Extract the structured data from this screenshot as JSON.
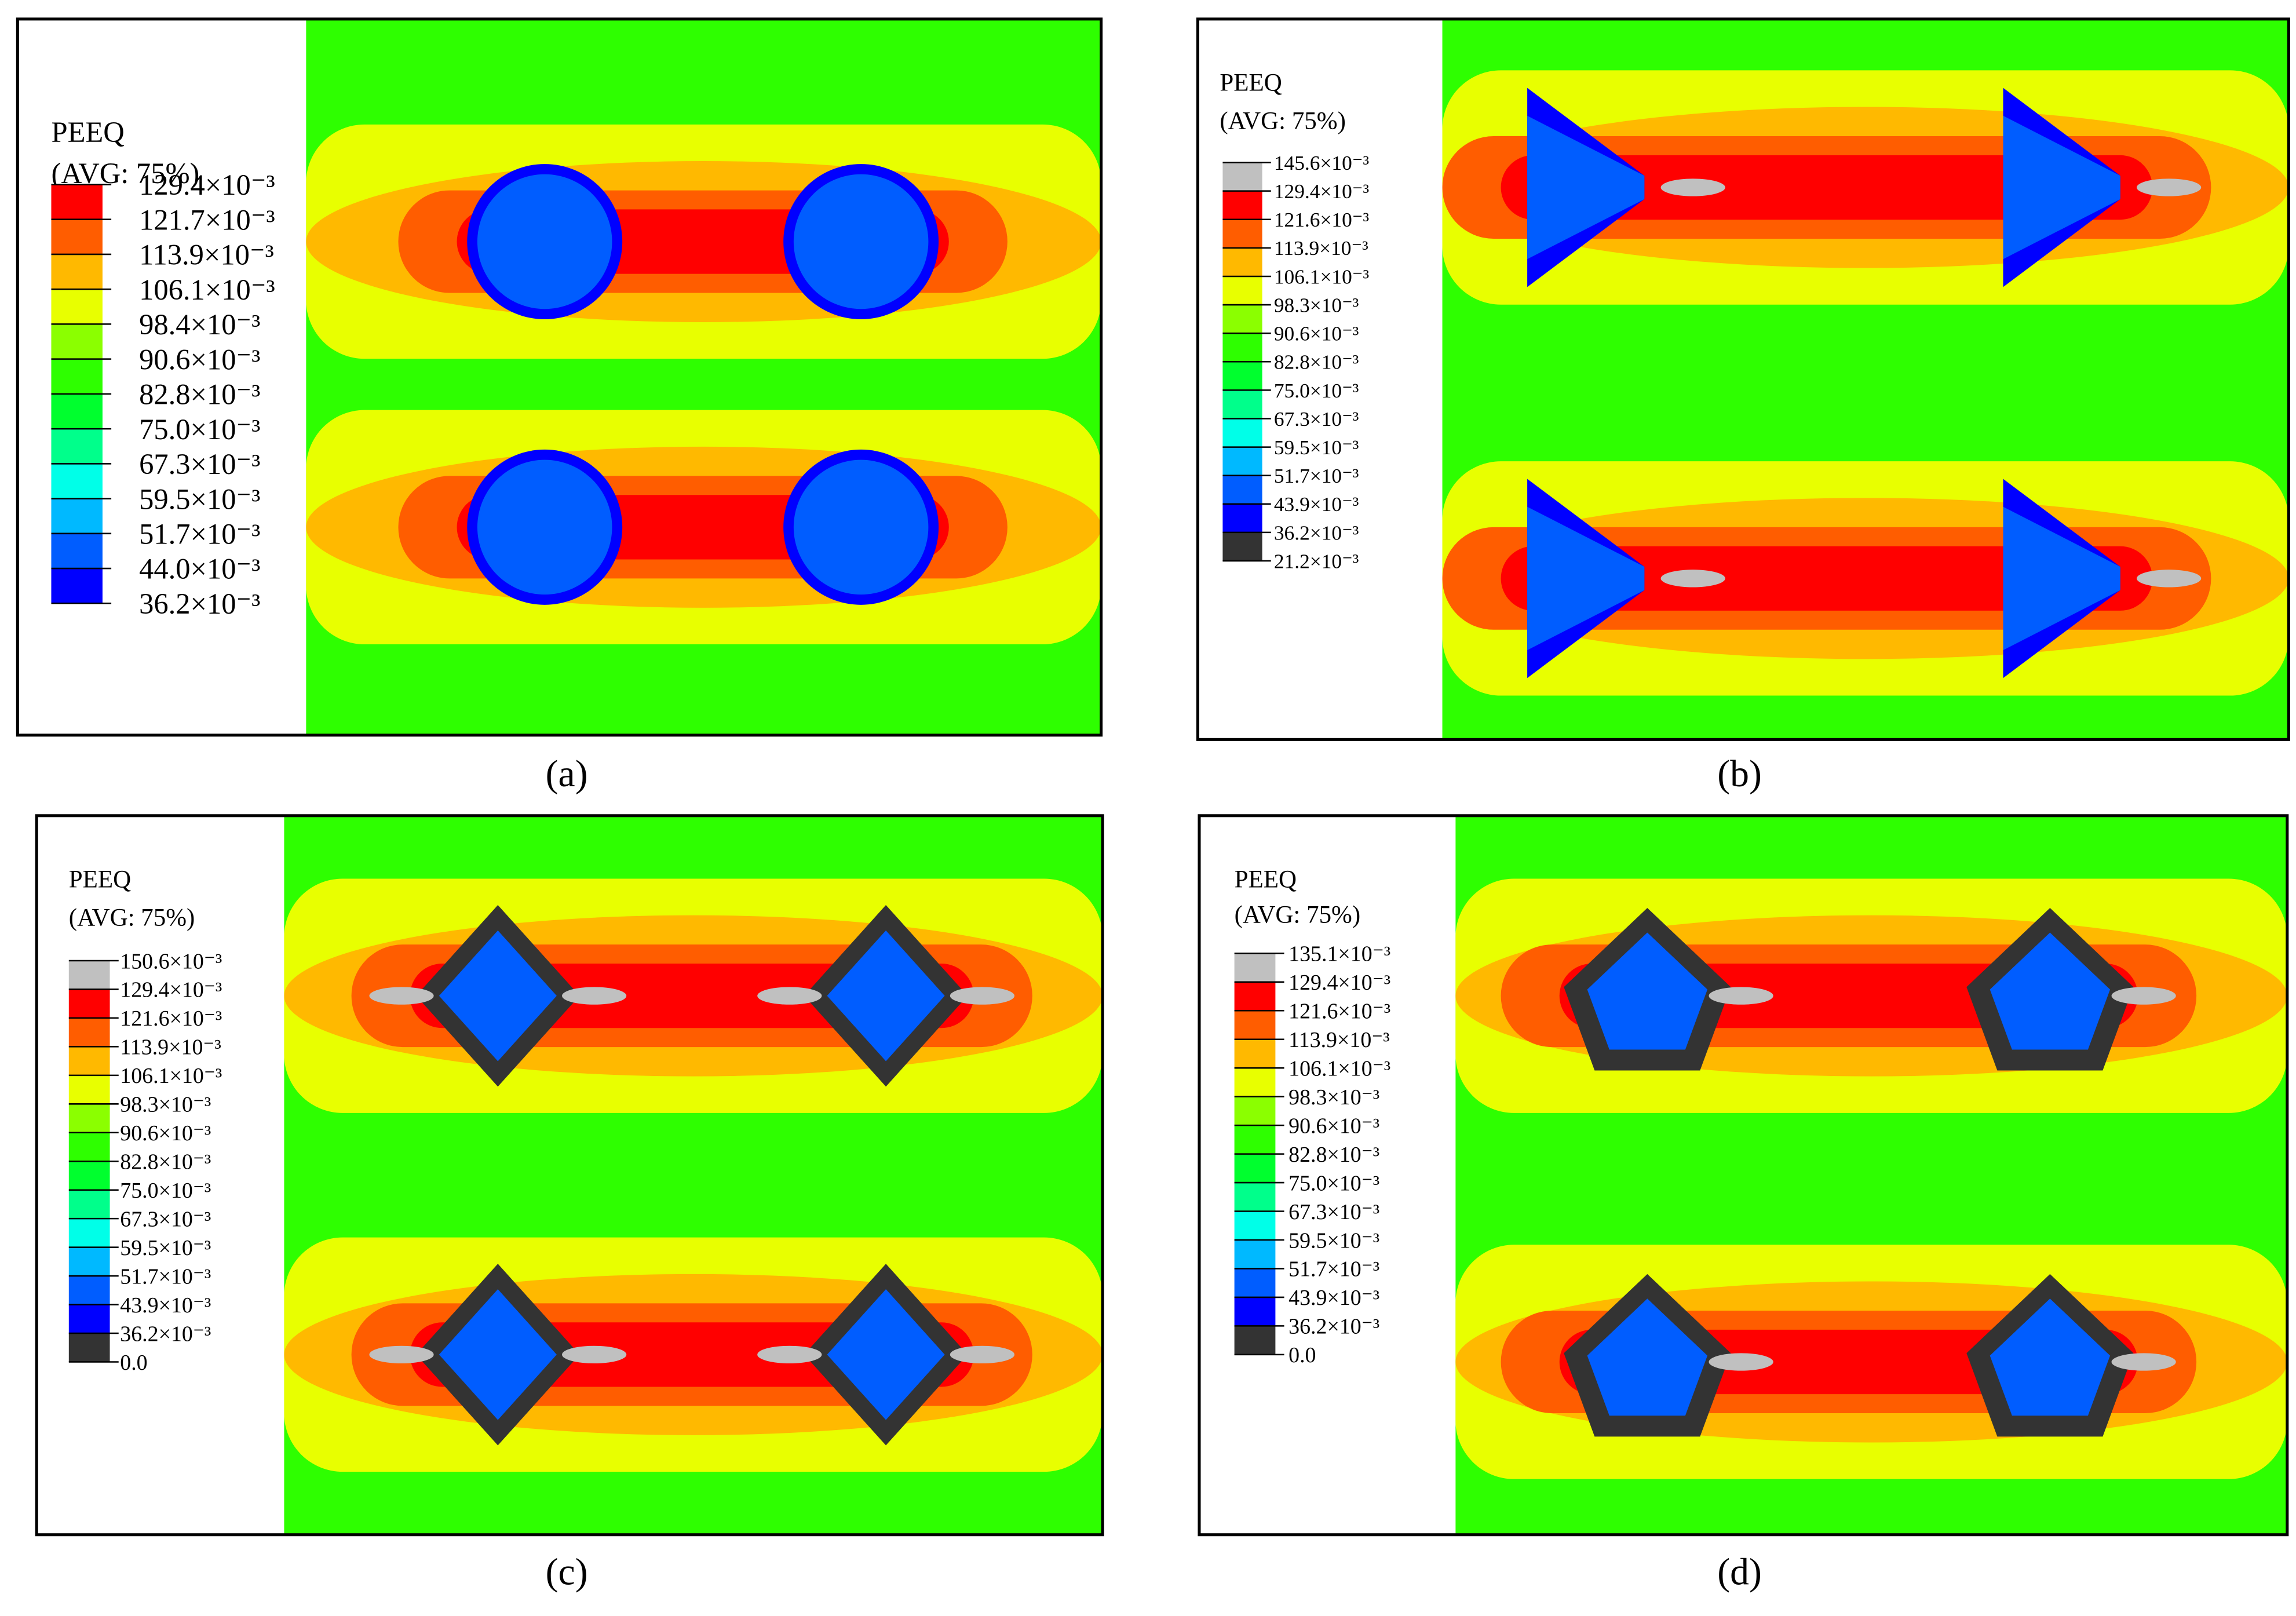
{
  "panels": [
    {
      "legend_title": "PEEQ",
      "legend_subtitle": "(AVG: 75%)",
      "caption": "(a)",
      "legend_labels": [
        "129.4×10⁻³",
        "121.7×10⁻³",
        "113.9×10⁻³",
        "106.1×10⁻³",
        "98.4×10⁻³",
        "90.6×10⁻³",
        "82.8×10⁻³",
        "75.0×10⁻³",
        "67.3×10⁻³",
        "59.5×10⁻³",
        "51.7×10⁻³",
        "44.0×10⁻³",
        "36.2×10⁻³"
      ],
      "legend_colors": [
        "#ff0000",
        "#ff5d00",
        "#ffb900",
        "#e8ff00",
        "#8bff00",
        "#2eff00",
        "#00ff2e",
        "#00ff8b",
        "#00ffe8",
        "#00b9ff",
        "#005dff",
        "#0000ff"
      ]
    },
    {
      "legend_title": "PEEQ",
      "legend_subtitle": "(AVG: 75%)",
      "caption": "(b)",
      "legend_labels": [
        "145.6×10⁻³",
        "129.4×10⁻³",
        "121.6×10⁻³",
        "113.9×10⁻³",
        "106.1×10⁻³",
        "98.3×10⁻³",
        "90.6×10⁻³",
        "82.8×10⁻³",
        "75.0×10⁻³",
        "67.3×10⁻³",
        "59.5×10⁻³",
        "51.7×10⁻³",
        "43.9×10⁻³",
        "36.2×10⁻³",
        "21.2×10⁻³"
      ],
      "legend_colors": [
        "#c0c0c0",
        "#ff0000",
        "#ff5d00",
        "#ffb900",
        "#e8ff00",
        "#8bff00",
        "#2eff00",
        "#00ff2e",
        "#00ff8b",
        "#00ffe8",
        "#00b9ff",
        "#005dff",
        "#0000ff",
        "#333333"
      ]
    },
    {
      "legend_title": "PEEQ",
      "legend_subtitle": "(AVG: 75%)",
      "caption": "(c)",
      "legend_labels": [
        "150.6×10⁻³",
        "129.4×10⁻³",
        "121.6×10⁻³",
        "113.9×10⁻³",
        "106.1×10⁻³",
        "98.3×10⁻³",
        "90.6×10⁻³",
        "82.8×10⁻³",
        "75.0×10⁻³",
        "67.3×10⁻³",
        "59.5×10⁻³",
        "51.7×10⁻³",
        "43.9×10⁻³",
        "36.2×10⁻³",
        "0.0"
      ],
      "legend_colors": [
        "#c0c0c0",
        "#ff0000",
        "#ff5d00",
        "#ffb900",
        "#e8ff00",
        "#8bff00",
        "#2eff00",
        "#00ff2e",
        "#00ff8b",
        "#00ffe8",
        "#00b9ff",
        "#005dff",
        "#0000ff",
        "#333333"
      ]
    },
    {
      "legend_title": "PEEQ",
      "legend_subtitle": "(AVG: 75%)",
      "caption": "(d)",
      "legend_labels": [
        "135.1×10⁻³",
        "129.4×10⁻³",
        "121.6×10⁻³",
        "113.9×10⁻³",
        "106.1×10⁻³",
        "98.3×10⁻³",
        "90.6×10⁻³",
        "82.8×10⁻³",
        "75.0×10⁻³",
        "67.3×10⁻³",
        "59.5×10⁻³",
        "51.7×10⁻³",
        "43.9×10⁻³",
        "36.2×10⁻³",
        "0.0"
      ],
      "legend_colors": [
        "#c0c0c0",
        "#ff0000",
        "#ff5d00",
        "#ffb900",
        "#e8ff00",
        "#8bff00",
        "#2eff00",
        "#00ff2e",
        "#00ff8b",
        "#00ffe8",
        "#00b9ff",
        "#005dff",
        "#0000ff",
        "#333333"
      ]
    }
  ]
}
